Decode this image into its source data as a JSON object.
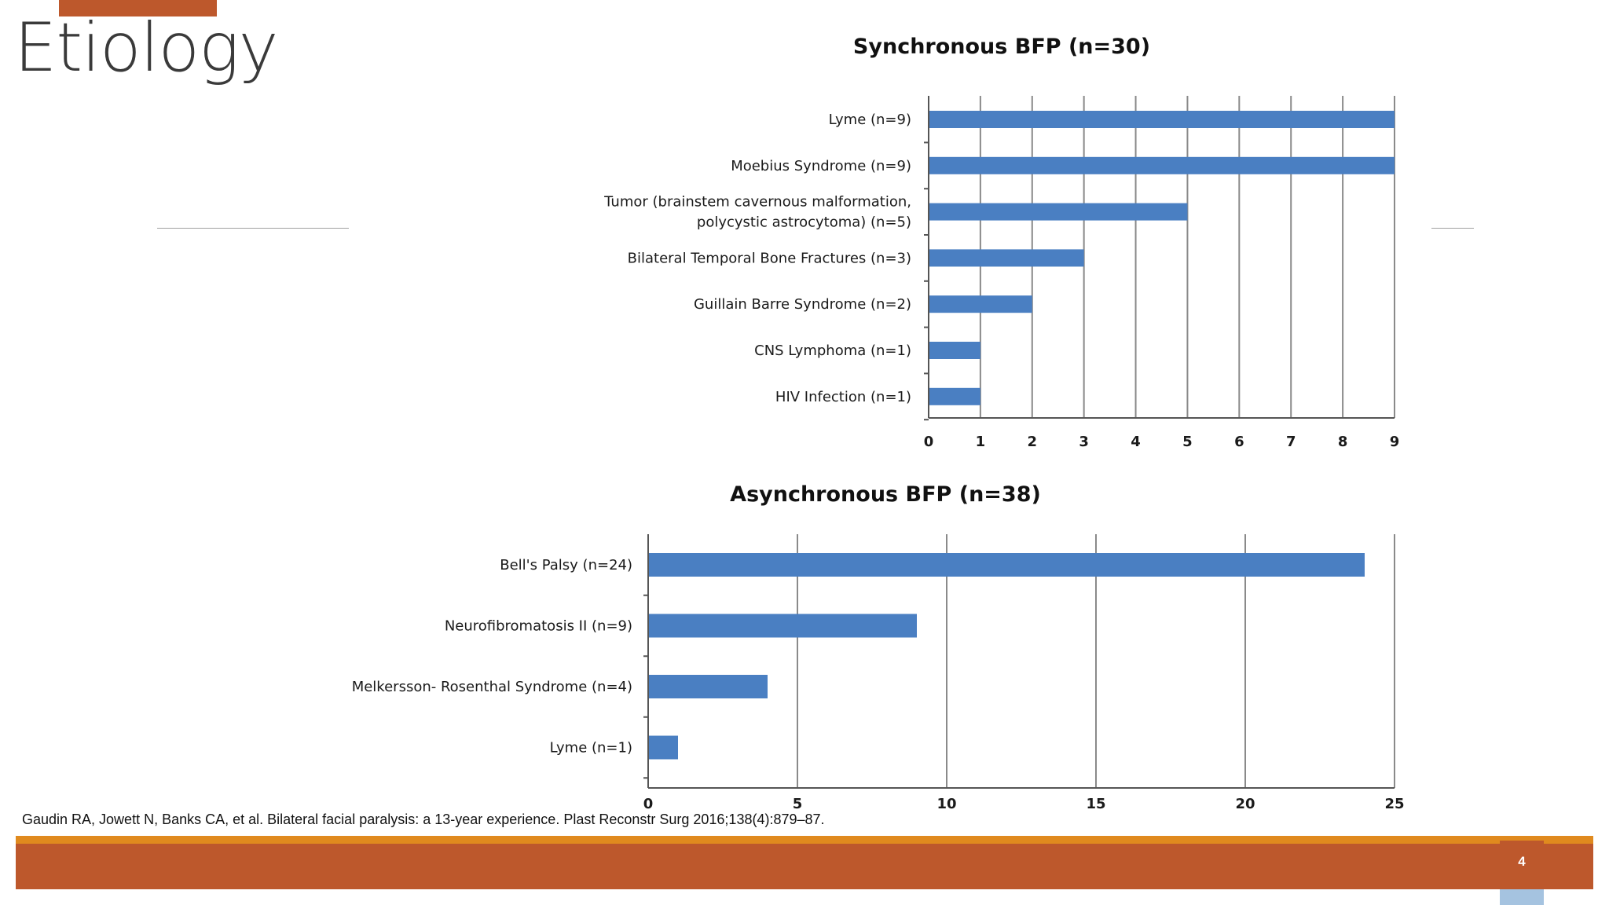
{
  "slide": {
    "title": "Etiology",
    "citation": "Gaudin RA, Jowett N, Banks CA, et al. Bilateral facial paralysis: a 13-year experience. Plast Reconstr Surg 2016;138(4):879–87.",
    "page_number": "4"
  },
  "colors": {
    "bar": "#4a7fc2",
    "accent": "#bd582c",
    "accent_secondary": "#e08a1e",
    "page_tab": "#a5c3e0",
    "grid": "#8a8a8a"
  },
  "chart_data": [
    {
      "type": "bar",
      "orientation": "horizontal",
      "title": "Synchronous BFP (n=30)",
      "categories": [
        [
          "Lyme (n=9)"
        ],
        [
          "Moebius Syndrome (n=9)"
        ],
        [
          "Tumor (brainstem cavernous malformation,",
          "polycystic astrocytoma) (n=5)"
        ],
        [
          "Bilateral Temporal Bone Fractures (n=3)"
        ],
        [
          "Guillain Barre Syndrome (n=2)"
        ],
        [
          "CNS Lymphoma (n=1)"
        ],
        [
          "HIV Infection (n=1)"
        ]
      ],
      "values": [
        9,
        9,
        5,
        3,
        2,
        1,
        1
      ],
      "xlim": [
        0,
        9
      ],
      "xticks": [
        "0",
        "1",
        "2",
        "3",
        "4",
        "5",
        "6",
        "7",
        "8",
        "9"
      ],
      "grid": true,
      "xlabel": "",
      "ylabel": ""
    },
    {
      "type": "bar",
      "orientation": "horizontal",
      "title": "Asynchronous BFP (n=38)",
      "categories": [
        [
          "Bell's Palsy (n=24)"
        ],
        [
          "Neurofibromatosis  II (n=9)"
        ],
        [
          "Melkersson- Rosenthal Syndrome (n=4)"
        ],
        [
          "Lyme (n=1)"
        ]
      ],
      "values": [
        24,
        9,
        4,
        1
      ],
      "xlim": [
        0,
        25
      ],
      "xticks": [
        "0",
        "5",
        "10",
        "15",
        "20",
        "25"
      ],
      "grid": true,
      "xlabel": "",
      "ylabel": ""
    }
  ]
}
